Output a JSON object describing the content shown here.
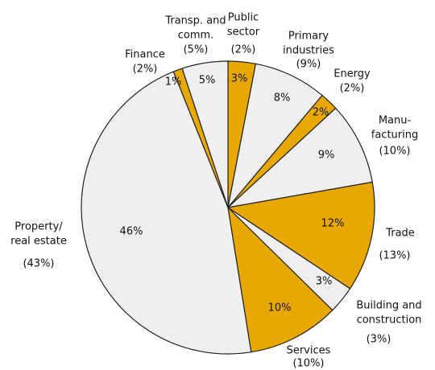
{
  "chart_data": {
    "type": "pie",
    "categories": [
      [
        "Public",
        "sector"
      ],
      [
        "Primary",
        "industries"
      ],
      [
        "Energy"
      ],
      [
        "Manu-",
        "facturing"
      ],
      [
        "Trade"
      ],
      [
        "Building and",
        "construction"
      ],
      [
        "Services"
      ],
      [
        "Property/",
        "real estate"
      ],
      [
        "Finance"
      ],
      [
        "Transp. and",
        "comm."
      ]
    ],
    "values": [
      3,
      8,
      2,
      9,
      12,
      3,
      10,
      46,
      1,
      5
    ],
    "value_labels": [
      "3%",
      "8%",
      "2%",
      "9%",
      "12%",
      "3%",
      "10%",
      "46%",
      "1%",
      "5%"
    ],
    "secondary_values": [
      2,
      9,
      2,
      10,
      13,
      3,
      10,
      43,
      2,
      5
    ],
    "secondary_value_labels": [
      "(2%)",
      "(9%)",
      "(2%)",
      "(10%)",
      "(13%)",
      "(3%)",
      "(10%)",
      "(43%)",
      "(2%)",
      "(5%)"
    ],
    "colors": [
      "#e8a800",
      "#efefef",
      "#e8a800",
      "#efefef",
      "#e8a800",
      "#efefef",
      "#e8a800",
      "#efefef",
      "#e8a800",
      "#efefef"
    ]
  }
}
